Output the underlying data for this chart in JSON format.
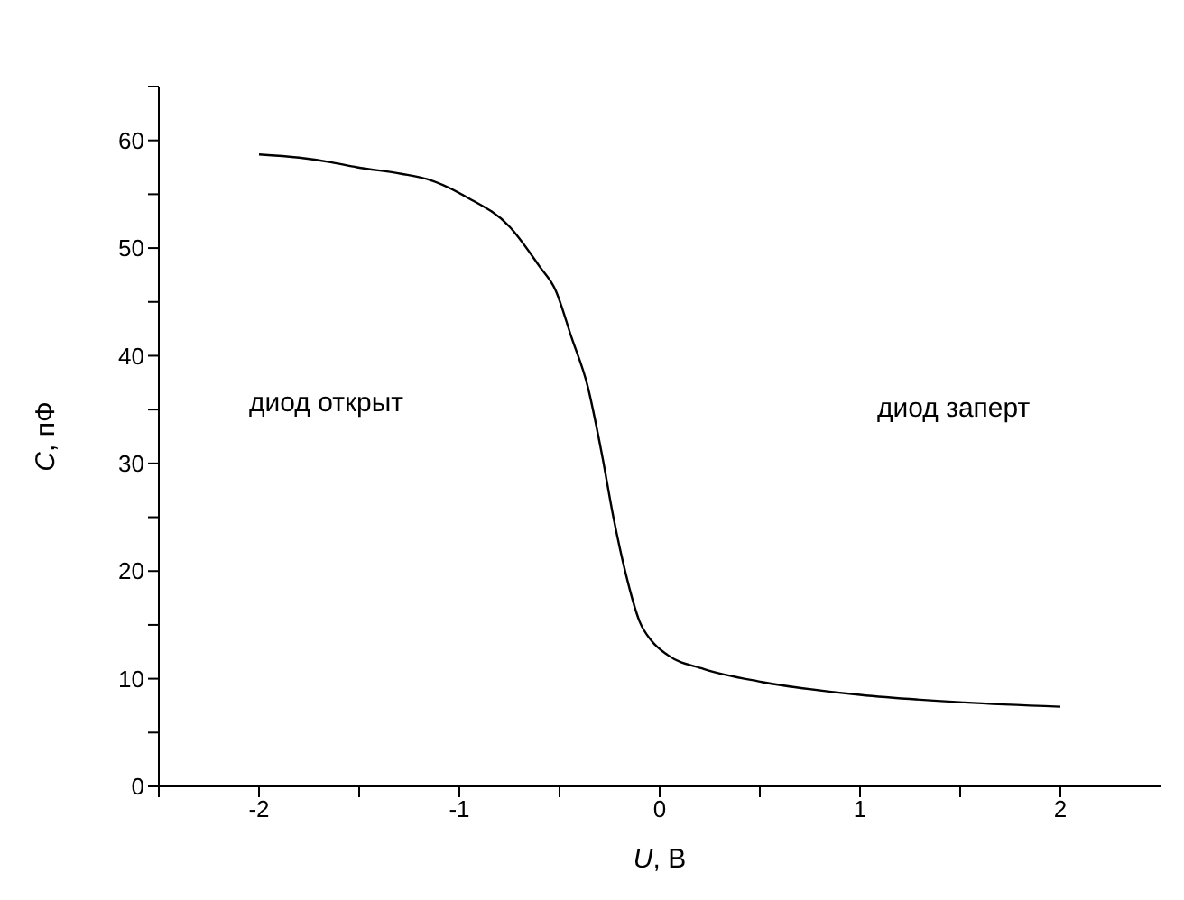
{
  "chart_data": {
    "type": "line",
    "xlabel": "U, В",
    "ylabel": "C, пФ",
    "xlim": [
      -2.5,
      2.5
    ],
    "xticks": [
      {
        "value": -2.5,
        "label": null
      },
      -2,
      {
        "value": -1.5,
        "label": null
      },
      -1,
      {
        "value": -0.5,
        "label": null
      },
      0,
      {
        "value": 0.5,
        "label": null
      },
      1,
      {
        "value": 1.5,
        "label": null
      },
      2
    ],
    "ylim": [
      0,
      65
    ],
    "yticks": [
      0,
      {
        "value": 5,
        "label": null
      },
      10,
      {
        "value": 15,
        "label": null
      },
      20,
      {
        "value": 25,
        "label": null
      },
      30,
      {
        "value": 35,
        "label": null
      },
      40,
      {
        "value": 45,
        "label": null
      },
      50,
      {
        "value": 55,
        "label": null
      },
      60,
      {
        "value": 65,
        "label": null
      }
    ],
    "x": [
      -2,
      -1.8,
      -1.65,
      -1.51,
      -1.29,
      -1.16,
      -0.96,
      -0.75,
      -0.6,
      -0.52,
      -0.44,
      -0.36,
      -0.29,
      -0.23,
      -0.17,
      -0.1,
      -0.04,
      0.04,
      0.22,
      0.51,
      1.0,
      1.52,
      2.0
    ],
    "series": [
      {
        "color": "#000000",
        "values": [
          58.7,
          58.4,
          58.0,
          57.5,
          56.9,
          56.4,
          54.7,
          52.0,
          48.3,
          46.1,
          41.7,
          37.2,
          31.0,
          24.9,
          19.8,
          15.3,
          13.5,
          12.2,
          10.9,
          9.7,
          8.5,
          7.8,
          7.4
        ]
      }
    ],
    "annotations": [
      "диод открыт",
      "диод заперт"
    ],
    "marker": "none",
    "line_style": "solid"
  }
}
